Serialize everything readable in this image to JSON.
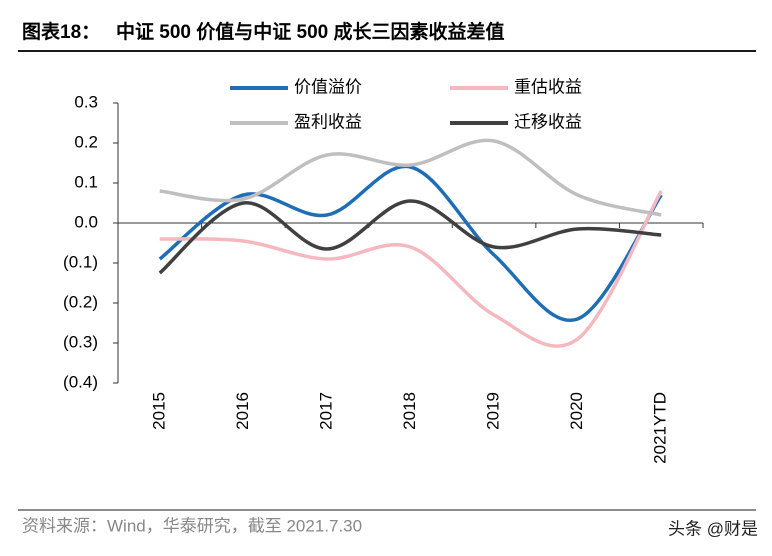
{
  "chart_data": {
    "type": "line",
    "title": "图表18：   中证 500 价值与中证 500 成长三因素收益差值",
    "source": "资料来源：Wind，华泰研究，截至 2021.7.30",
    "watermark": "头条 @财是",
    "categories": [
      "2015",
      "2016",
      "2017",
      "2018",
      "2019",
      "2020",
      "2021YTD"
    ],
    "series": [
      {
        "name": "价值溢价",
        "color": "#1f6eb5",
        "values": [
          -0.09,
          0.07,
          0.02,
          0.14,
          -0.08,
          -0.24,
          0.07
        ]
      },
      {
        "name": "重估收益",
        "color": "#f4b8be",
        "values": [
          -0.04,
          -0.045,
          -0.09,
          -0.06,
          -0.23,
          -0.29,
          0.08
        ]
      },
      {
        "name": "盈利收益",
        "color": "#bfbfbf",
        "values": [
          0.08,
          0.06,
          0.17,
          0.145,
          0.205,
          0.07,
          0.02
        ]
      },
      {
        "name": "迁移收益",
        "color": "#404040",
        "values": [
          -0.125,
          0.05,
          -0.065,
          0.055,
          -0.06,
          -0.015,
          -0.03
        ]
      }
    ],
    "ylim": [
      -0.4,
      0.3
    ],
    "yticks": [
      0.3,
      0.2,
      0.1,
      {
        "value": 0,
        "label": "0.0"
      },
      {
        "value": -0.1,
        "label": "(0.1)"
      },
      {
        "value": -0.2,
        "label": "(0.2)"
      },
      {
        "value": -0.3,
        "label": "(0.3)"
      },
      {
        "value": -0.4,
        "label": "(0.4)"
      }
    ],
    "legend": "top"
  }
}
